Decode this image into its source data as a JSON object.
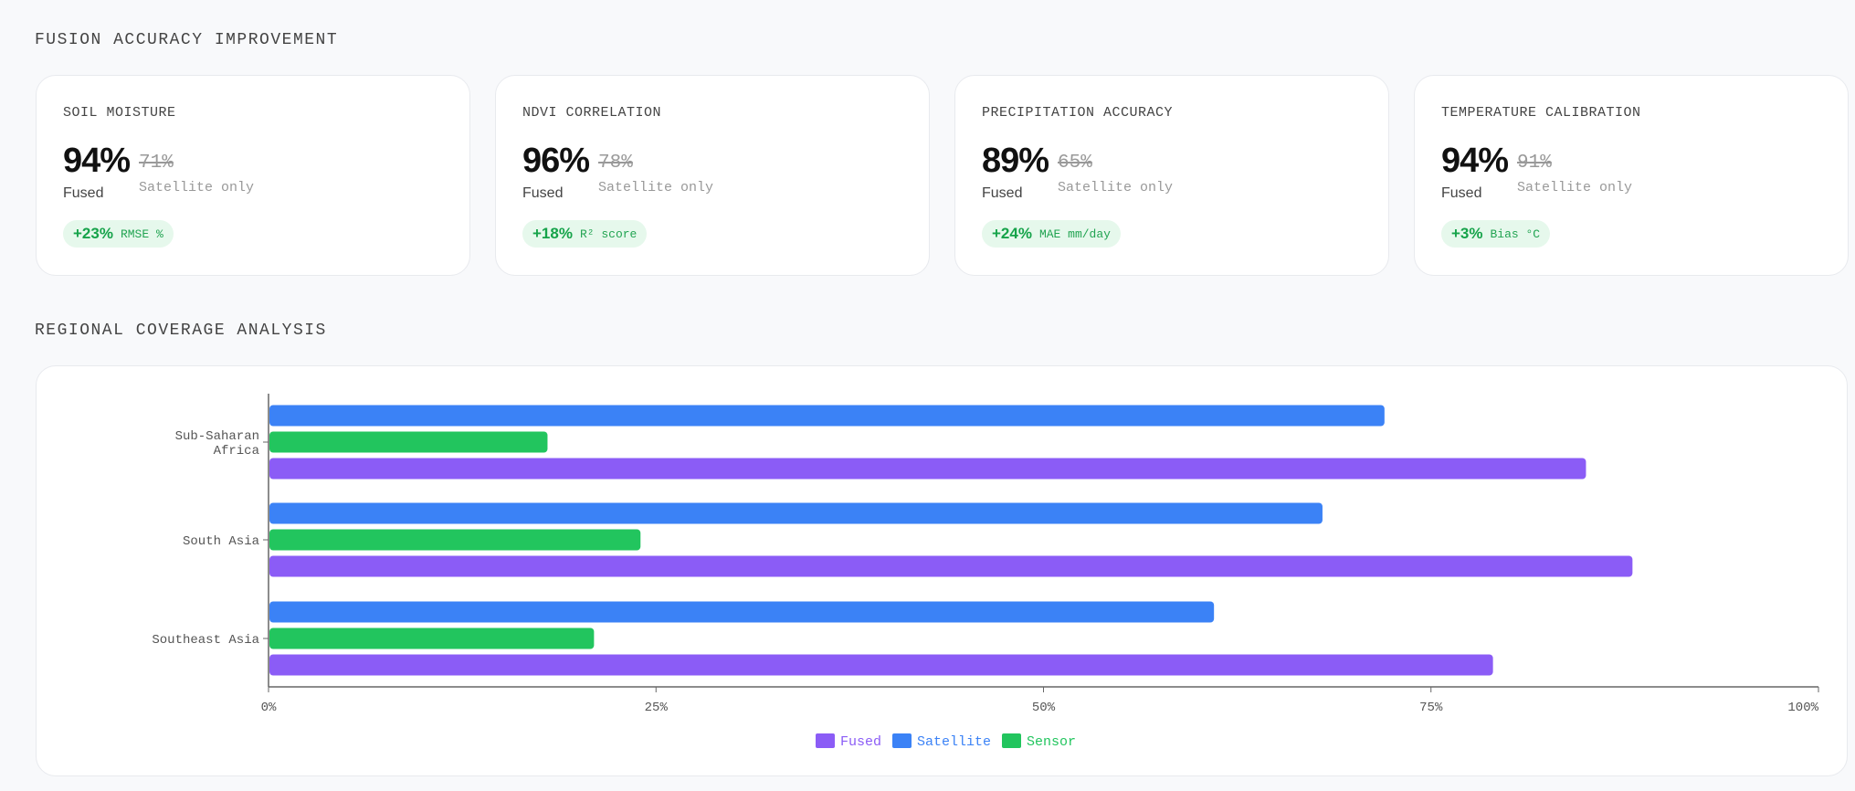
{
  "sections": {
    "accuracy_title": "FUSION ACCURACY IMPROVEMENT",
    "coverage_title": "REGIONAL COVERAGE ANALYSIS"
  },
  "cards": [
    {
      "label": "SOIL MOISTURE",
      "fused": "94%",
      "satellite": "71%",
      "fused_label": "Fused",
      "satellite_label": "Satellite only",
      "gain": "+23%",
      "metric": "RMSE %"
    },
    {
      "label": "NDVI CORRELATION",
      "fused": "96%",
      "satellite": "78%",
      "fused_label": "Fused",
      "satellite_label": "Satellite only",
      "gain": "+18%",
      "metric": "R² score"
    },
    {
      "label": "PRECIPITATION ACCURACY",
      "fused": "89%",
      "satellite": "65%",
      "fused_label": "Fused",
      "satellite_label": "Satellite only",
      "gain": "+24%",
      "metric": "MAE mm/day"
    },
    {
      "label": "TEMPERATURE CALIBRATION",
      "fused": "94%",
      "satellite": "91%",
      "fused_label": "Fused",
      "satellite_label": "Satellite only",
      "gain": "+3%",
      "metric": "Bias °C"
    }
  ],
  "chart_data": {
    "type": "bar",
    "orientation": "horizontal",
    "categories": [
      "Sub-Saharan Africa",
      "South Asia",
      "Southeast Asia"
    ],
    "series": [
      {
        "name": "Fused",
        "color": "#8b5cf6",
        "values": [
          85,
          88,
          79
        ]
      },
      {
        "name": "Satellite",
        "color": "#3b82f6",
        "values": [
          72,
          68,
          61
        ]
      },
      {
        "name": "Sensor",
        "color": "#22c55e",
        "values": [
          18,
          24,
          21
        ]
      }
    ],
    "xlim": [
      0,
      100
    ],
    "xticks": [
      "0%",
      "25%",
      "50%",
      "75%",
      "100%"
    ],
    "legend": "bottom",
    "grid": false
  }
}
